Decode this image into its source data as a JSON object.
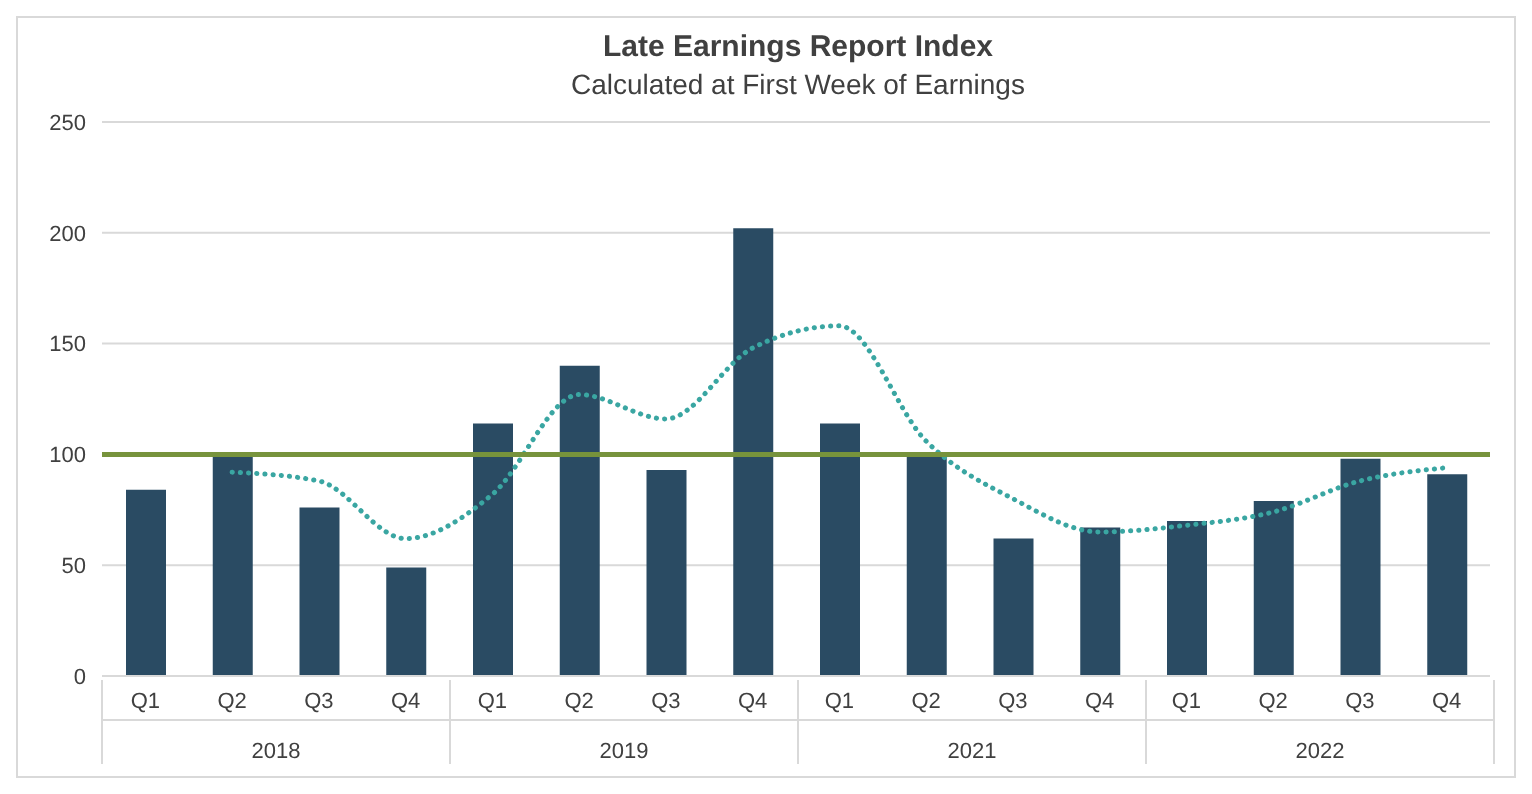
{
  "chart_data": {
    "type": "bar",
    "title": "Late Earnings Report Index",
    "subtitle": "Calculated at First Week of Earnings",
    "categories": [
      "Q1",
      "Q2",
      "Q3",
      "Q4",
      "Q1",
      "Q2",
      "Q3",
      "Q4",
      "Q1",
      "Q2",
      "Q3",
      "Q4",
      "Q1",
      "Q2",
      "Q3",
      "Q4"
    ],
    "annotations": [
      "2018",
      "2019",
      "2021",
      "2022"
    ],
    "series": [
      {
        "color": "#2a4b63",
        "values": [
          84,
          101,
          76,
          49,
          114,
          140,
          93,
          202,
          114,
          99,
          62,
          67,
          70,
          79,
          98,
          91
        ]
      },
      {
        "type": "line",
        "color": "#3aa6a2",
        "line_style": "dotted",
        "values": [
          null,
          92,
          88,
          62,
          82,
          127,
          116,
          148,
          158,
          106,
          80,
          65,
          68,
          74,
          88,
          94
        ]
      }
    ],
    "ref_lines": [
      {
        "axis": "y",
        "value": 100,
        "color": "#77933c"
      }
    ],
    "ylim": [
      0,
      250
    ],
    "yticks": [
      0,
      50,
      100,
      150,
      200,
      250
    ],
    "grid": "y",
    "legend": false
  }
}
